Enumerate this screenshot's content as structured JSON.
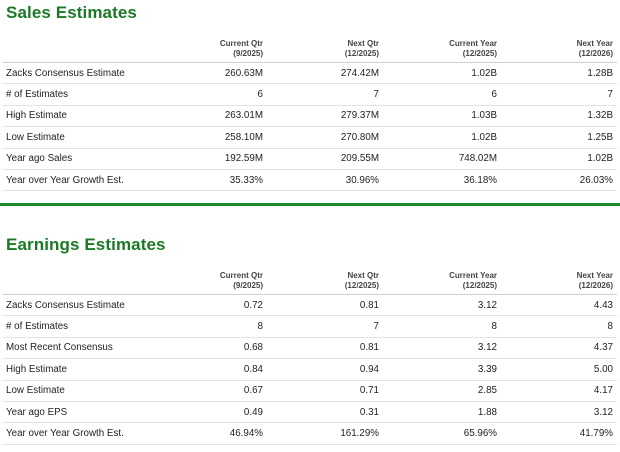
{
  "sales": {
    "title": "Sales Estimates",
    "columns": [
      {
        "line1": "Current Qtr",
        "line2": "(9/2025)"
      },
      {
        "line1": "Next Qtr",
        "line2": "(12/2025)"
      },
      {
        "line1": "Current Year",
        "line2": "(12/2025)"
      },
      {
        "line1": "Next Year",
        "line2": "(12/2026)"
      }
    ],
    "rows": [
      {
        "label": "Zacks Consensus Estimate",
        "values": [
          "260.63M",
          "274.42M",
          "1.02B",
          "1.28B"
        ]
      },
      {
        "label": "# of Estimates",
        "values": [
          "6",
          "7",
          "6",
          "7"
        ]
      },
      {
        "label": "High Estimate",
        "values": [
          "263.01M",
          "279.37M",
          "1.03B",
          "1.32B"
        ]
      },
      {
        "label": "Low Estimate",
        "values": [
          "258.10M",
          "270.80M",
          "1.02B",
          "1.25B"
        ]
      },
      {
        "label": "Year ago Sales",
        "values": [
          "192.59M",
          "209.55M",
          "748.02M",
          "1.02B"
        ]
      },
      {
        "label": "Year over Year Growth Est.",
        "values": [
          "35.33%",
          "30.96%",
          "36.18%",
          "26.03%"
        ]
      }
    ]
  },
  "earnings": {
    "title": "Earnings Estimates",
    "columns": [
      {
        "line1": "Current Qtr",
        "line2": "(9/2025)"
      },
      {
        "line1": "Next Qtr",
        "line2": "(12/2025)"
      },
      {
        "line1": "Current Year",
        "line2": "(12/2025)"
      },
      {
        "line1": "Next Year",
        "line2": "(12/2026)"
      }
    ],
    "rows": [
      {
        "label": "Zacks Consensus Estimate",
        "values": [
          "0.72",
          "0.81",
          "3.12",
          "4.43"
        ]
      },
      {
        "label": "# of Estimates",
        "values": [
          "8",
          "7",
          "8",
          "8"
        ]
      },
      {
        "label": "Most Recent Consensus",
        "values": [
          "0.68",
          "0.81",
          "3.12",
          "4.37"
        ]
      },
      {
        "label": "High Estimate",
        "values": [
          "0.84",
          "0.94",
          "3.39",
          "5.00"
        ]
      },
      {
        "label": "Low Estimate",
        "values": [
          "0.67",
          "0.71",
          "2.85",
          "4.17"
        ]
      },
      {
        "label": "Year ago EPS",
        "values": [
          "0.49",
          "0.31",
          "1.88",
          "3.12"
        ]
      },
      {
        "label": "Year over Year Growth Est.",
        "values": [
          "46.94%",
          "161.29%",
          "65.96%",
          "41.79%"
        ]
      }
    ]
  },
  "colors": {
    "title_green": "#1a7a26",
    "divider_green": "#1c8c2a"
  }
}
